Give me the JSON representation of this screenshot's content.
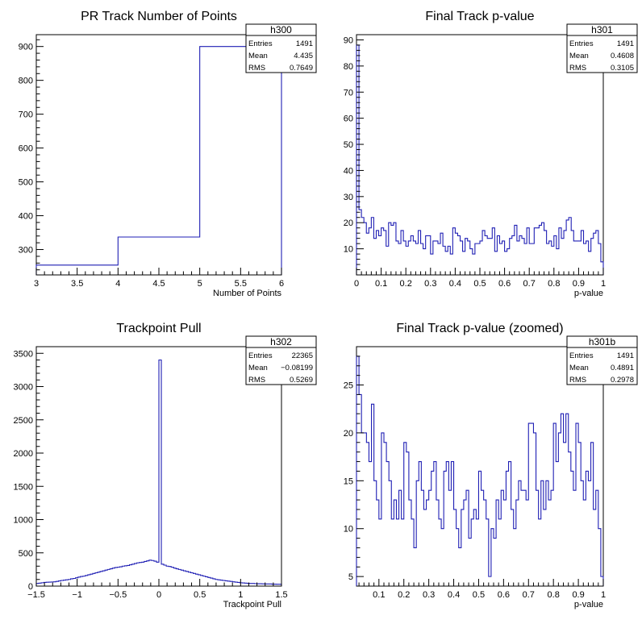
{
  "chart_data": [
    {
      "type": "histogram",
      "title": "PR Track Number of Points",
      "xlabel": "Number of Points",
      "ylabel": "",
      "xlim": [
        3,
        6
      ],
      "ylim": [
        225,
        935
      ],
      "xticks": [
        "3",
        "3.5",
        "4",
        "4.5",
        "5",
        "5.5",
        "6"
      ],
      "yticks": [
        "300",
        "400",
        "500",
        "600",
        "700",
        "800",
        "900"
      ],
      "bins": {
        "edges": [
          3,
          4,
          5,
          6
        ],
        "counts": [
          254,
          337,
          900
        ]
      },
      "stats_box": {
        "name": "h300",
        "rows": [
          {
            "label": "Entries",
            "value": "1491"
          },
          {
            "label": "Mean",
            "value": "4.435"
          },
          {
            "label": "RMS",
            "value": "0.7649"
          }
        ]
      }
    },
    {
      "type": "histogram",
      "title": "Final Track p-value",
      "xlabel": "p-value",
      "ylabel": "",
      "xlim": [
        0,
        1
      ],
      "ylim": [
        0,
        92
      ],
      "xticks": [
        "0",
        "0.1",
        "0.2",
        "0.3",
        "0.4",
        "0.5",
        "0.6",
        "0.7",
        "0.8",
        "0.9",
        "1"
      ],
      "yticks": [
        "10",
        "20",
        "30",
        "40",
        "50",
        "60",
        "70",
        "80",
        "90"
      ],
      "bins": {
        "range": [
          0,
          1
        ],
        "nbins": 100,
        "counts": [
          88,
          25,
          22,
          20,
          16,
          18,
          22,
          14,
          17,
          15,
          18,
          17,
          11,
          20,
          19,
          20,
          13,
          12,
          17,
          13,
          11,
          13,
          15,
          13,
          12,
          17,
          12,
          10,
          15,
          15,
          8,
          13,
          13,
          12,
          16,
          11,
          9,
          11,
          8,
          18,
          16,
          15,
          13,
          9,
          14,
          13,
          10,
          8,
          12,
          12,
          13,
          17,
          15,
          14,
          14,
          18,
          9,
          15,
          12,
          13,
          9,
          10,
          14,
          15,
          19,
          13,
          15,
          14,
          12,
          18,
          12,
          12,
          18,
          18,
          19,
          20,
          17,
          12,
          13,
          11,
          15,
          10,
          18,
          14,
          17,
          21,
          22,
          17,
          13,
          13,
          13,
          17,
          12,
          13,
          9,
          14,
          16,
          17,
          12,
          5
        ]
      },
      "stats_box": {
        "name": "h301",
        "rows": [
          {
            "label": "Entries",
            "value": "1491"
          },
          {
            "label": "Mean",
            "value": "0.4608"
          },
          {
            "label": "RMS",
            "value": "0.3105"
          }
        ]
      }
    },
    {
      "type": "histogram",
      "title": "Trackpoint Pull",
      "xlabel": "Trackpoint Pull",
      "ylabel": "",
      "xlim": [
        -1.5,
        1.5
      ],
      "ylim": [
        0,
        3600
      ],
      "xticks": [
        "−1.5",
        "−1",
        "−0.5",
        "0",
        "0.5",
        "1",
        "1.5"
      ],
      "yticks": [
        "0",
        "500",
        "1000",
        "1500",
        "2000",
        "2500",
        "3000",
        "3500"
      ],
      "bins": {
        "range": [
          -1.5,
          1.5
        ],
        "nbins": 100,
        "counts": [
          40,
          45,
          50,
          55,
          58,
          60,
          62,
          65,
          70,
          78,
          85,
          90,
          95,
          100,
          110,
          115,
          125,
          135,
          145,
          150,
          160,
          170,
          180,
          190,
          200,
          210,
          220,
          230,
          240,
          250,
          260,
          270,
          280,
          285,
          290,
          300,
          305,
          310,
          320,
          330,
          340,
          350,
          355,
          360,
          370,
          380,
          390,
          385,
          375,
          360,
          3400,
          330,
          315,
          300,
          295,
          285,
          270,
          260,
          250,
          240,
          230,
          220,
          210,
          200,
          190,
          180,
          170,
          160,
          150,
          140,
          130,
          120,
          110,
          100,
          95,
          90,
          85,
          80,
          75,
          70,
          65,
          60,
          55,
          50,
          48,
          45,
          42,
          40,
          40,
          38,
          36,
          35,
          34,
          33,
          32,
          32,
          30,
          30,
          28,
          28
        ]
      },
      "stats_box": {
        "name": "h302",
        "rows": [
          {
            "label": "Entries",
            "value": "22365"
          },
          {
            "label": "Mean",
            "value": "−0.08199"
          },
          {
            "label": "RMS",
            "value": "0.5269"
          }
        ]
      }
    },
    {
      "type": "histogram",
      "title": "Final Track p-value (zoomed)",
      "xlabel": "p-value",
      "ylabel": "",
      "xlim": [
        0.01,
        1
      ],
      "ylim": [
        4,
        29
      ],
      "xticks": [
        "0.1",
        "0.2",
        "0.3",
        "0.4",
        "0.5",
        "0.6",
        "0.7",
        "0.8",
        "0.9",
        "1"
      ],
      "yticks": [
        "5",
        "10",
        "15",
        "20",
        "25"
      ],
      "bins": {
        "range": [
          0.01,
          1
        ],
        "nbins": 99,
        "counts": [
          28,
          24,
          20,
          20,
          19,
          17,
          23,
          15,
          13,
          11,
          20,
          19,
          17,
          15,
          11,
          13,
          11,
          14,
          11,
          19,
          18,
          13,
          11,
          8,
          15,
          17,
          14,
          12,
          13,
          14,
          16,
          17,
          13,
          11,
          10,
          16,
          17,
          14,
          17,
          12,
          10,
          8,
          12,
          13,
          14,
          9,
          11,
          12,
          11,
          16,
          14,
          13,
          11,
          5,
          10,
          9,
          13,
          11,
          14,
          13,
          16,
          17,
          12,
          10,
          13,
          15,
          14,
          14,
          13,
          21,
          21,
          20,
          14,
          11,
          15,
          12,
          15,
          13,
          14,
          21,
          17,
          20,
          22,
          19,
          22,
          18,
          16,
          14,
          21,
          19,
          15,
          13,
          16,
          15,
          19,
          12,
          14,
          10,
          5
        ]
      },
      "stats_box": {
        "name": "h301b",
        "rows": [
          {
            "label": "Entries",
            "value": "1491"
          },
          {
            "label": "Mean",
            "value": "0.4891"
          },
          {
            "label": "RMS",
            "value": "0.2978"
          }
        ]
      }
    }
  ]
}
